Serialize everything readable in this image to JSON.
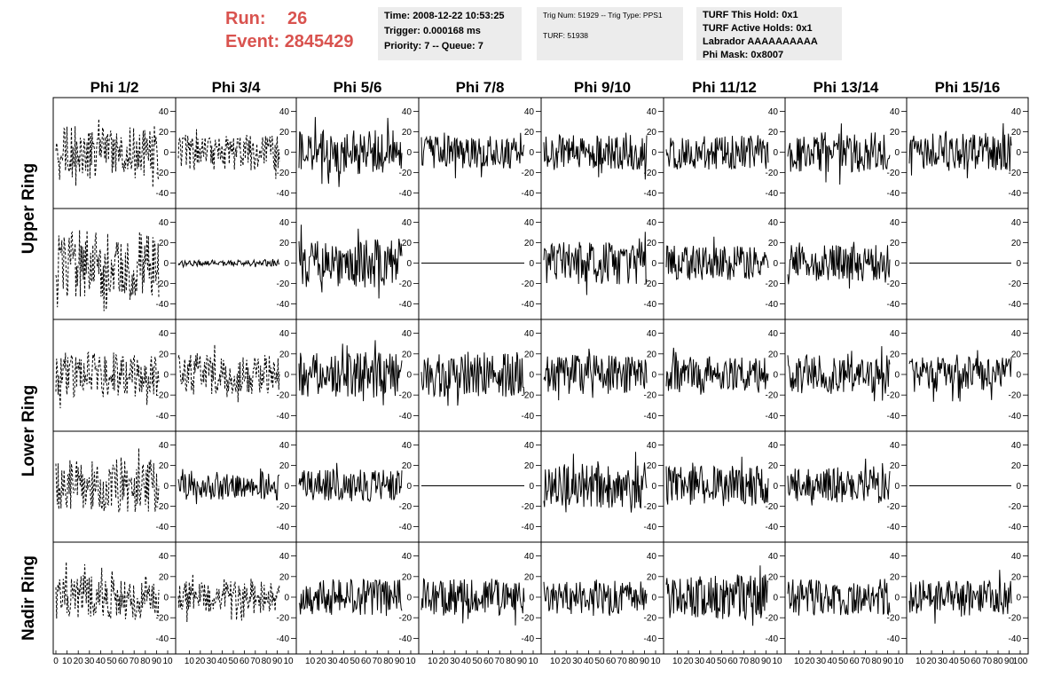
{
  "header": {
    "run_label": "Run:",
    "run_value": "26",
    "event_label": "Event:",
    "event_value": "2845429",
    "colors": {
      "run_text": "#d9534f",
      "info_bg": "#ececec",
      "trace": "#000000"
    }
  },
  "time_box": {
    "line1": "Time: 2008-12-22 10:53:25",
    "line2": "Trigger: 0.000168 ms",
    "line3": "Priority: 7 -- Queue: 7"
  },
  "trig_box": {
    "line1": "Trig Num: 51929 -- Trig Type: PPS1",
    "line2": "TURF: 51938"
  },
  "turf_box": {
    "line1": "TURF This Hold: 0x1",
    "line2": "TURF Active Holds: 0x1",
    "line3": "Labrador AAAAAAAAAA",
    "line4": "Phi Mask: 0x8007"
  },
  "columns": [
    "Phi 1/2",
    "Phi 3/4",
    "Phi 5/6",
    "Phi 7/8",
    "Phi 9/10",
    "Phi 11/12",
    "Phi 13/14",
    "Phi 15/16"
  ],
  "ring_labels": [
    "Upper Ring",
    "Lower Ring",
    "Nadir Ring"
  ],
  "y_ticks": [
    40,
    20,
    0,
    -20,
    -40
  ],
  "x_tick_labels": {
    "first": [
      "0",
      "10",
      "20",
      "30",
      "40",
      "50",
      "60",
      "70",
      "80",
      "90",
      "10"
    ],
    "middle": [
      "10",
      "20",
      "30",
      "40",
      "50",
      "60",
      "70",
      "80",
      "90",
      "10"
    ],
    "last": [
      "10",
      "20",
      "30",
      "40",
      "50",
      "60",
      "70",
      "80",
      "90",
      "100"
    ]
  },
  "chart_data": {
    "type": "line",
    "grid": false,
    "x_range": [
      0,
      100
    ],
    "ylim": [
      -50,
      50
    ],
    "note_styles": "row,col -> trace style",
    "panels": [
      {
        "row": 0,
        "col": 0,
        "style": "dashed",
        "amplitude": 27
      },
      {
        "row": 0,
        "col": 1,
        "style": "dashed",
        "amplitude": 18
      },
      {
        "row": 0,
        "col": 2,
        "style": "solid",
        "amplitude": 22
      },
      {
        "row": 0,
        "col": 3,
        "style": "solid",
        "amplitude": 16
      },
      {
        "row": 0,
        "col": 4,
        "style": "solid",
        "amplitude": 18
      },
      {
        "row": 0,
        "col": 5,
        "style": "solid",
        "amplitude": 17
      },
      {
        "row": 0,
        "col": 6,
        "style": "solid",
        "amplitude": 20
      },
      {
        "row": 0,
        "col": 7,
        "style": "solid",
        "amplitude": 19
      },
      {
        "row": 1,
        "col": 0,
        "style": "dashed",
        "amplitude": 33
      },
      {
        "row": 1,
        "col": 1,
        "style": "solid",
        "amplitude": 3
      },
      {
        "row": 1,
        "col": 2,
        "style": "solid",
        "amplitude": 24
      },
      {
        "row": 1,
        "col": 3,
        "style": "flat",
        "amplitude": 0
      },
      {
        "row": 1,
        "col": 4,
        "style": "solid",
        "amplitude": 21
      },
      {
        "row": 1,
        "col": 5,
        "style": "solid",
        "amplitude": 17
      },
      {
        "row": 1,
        "col": 6,
        "style": "solid",
        "amplitude": 18
      },
      {
        "row": 1,
        "col": 7,
        "style": "flat",
        "amplitude": 0
      },
      {
        "row": 2,
        "col": 0,
        "style": "dashed",
        "amplitude": 22
      },
      {
        "row": 2,
        "col": 1,
        "style": "dashed",
        "amplitude": 19
      },
      {
        "row": 2,
        "col": 2,
        "style": "solid",
        "amplitude": 22
      },
      {
        "row": 2,
        "col": 3,
        "style": "solid",
        "amplitude": 22
      },
      {
        "row": 2,
        "col": 4,
        "style": "solid",
        "amplitude": 19
      },
      {
        "row": 2,
        "col": 5,
        "style": "solid",
        "amplitude": 18
      },
      {
        "row": 2,
        "col": 6,
        "style": "solid",
        "amplitude": 19
      },
      {
        "row": 2,
        "col": 7,
        "style": "solid",
        "amplitude": 17
      },
      {
        "row": 3,
        "col": 0,
        "style": "dashed",
        "amplitude": 26
      },
      {
        "row": 3,
        "col": 1,
        "style": "solid",
        "amplitude": 14
      },
      {
        "row": 3,
        "col": 2,
        "style": "solid",
        "amplitude": 16
      },
      {
        "row": 3,
        "col": 3,
        "style": "flat",
        "amplitude": 0
      },
      {
        "row": 3,
        "col": 4,
        "style": "solid",
        "amplitude": 22
      },
      {
        "row": 3,
        "col": 5,
        "style": "solid",
        "amplitude": 20
      },
      {
        "row": 3,
        "col": 6,
        "style": "solid",
        "amplitude": 17
      },
      {
        "row": 3,
        "col": 7,
        "style": "flat",
        "amplitude": 0
      },
      {
        "row": 4,
        "col": 0,
        "style": "dashed",
        "amplitude": 22
      },
      {
        "row": 4,
        "col": 1,
        "style": "dashed",
        "amplitude": 16
      },
      {
        "row": 4,
        "col": 2,
        "style": "solid",
        "amplitude": 18
      },
      {
        "row": 4,
        "col": 3,
        "style": "solid",
        "amplitude": 18
      },
      {
        "row": 4,
        "col": 4,
        "style": "solid",
        "amplitude": 16
      },
      {
        "row": 4,
        "col": 5,
        "style": "solid",
        "amplitude": 22
      },
      {
        "row": 4,
        "col": 6,
        "style": "solid",
        "amplitude": 18
      },
      {
        "row": 4,
        "col": 7,
        "style": "solid",
        "amplitude": 17
      }
    ]
  }
}
